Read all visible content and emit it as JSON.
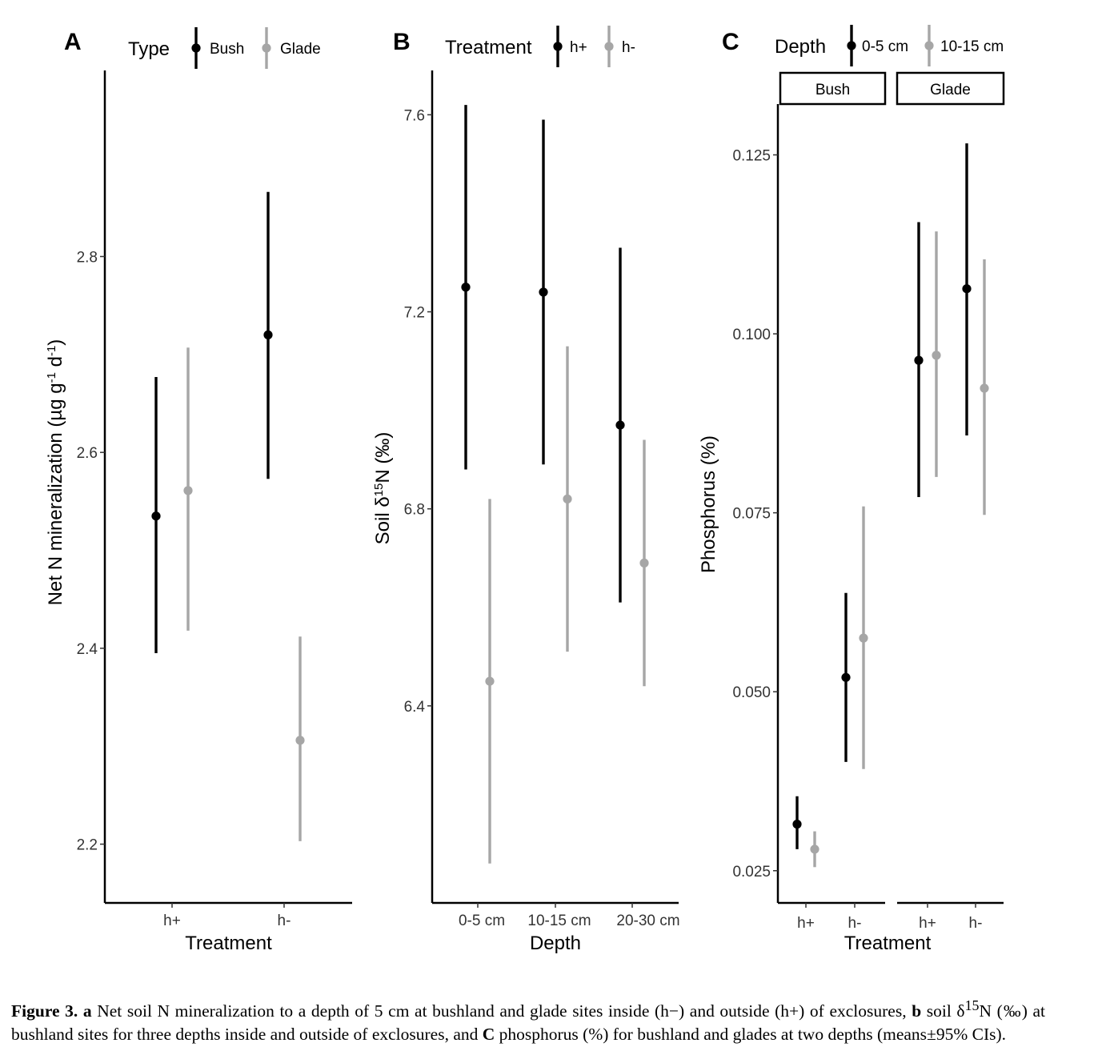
{
  "chart_data": [
    {
      "type": "errorbar",
      "panel_label": "A",
      "xlabel": "Treatment",
      "ylabel": "Net N mineralization (µg g⁻¹ d⁻¹)",
      "categories": [
        "h+",
        "h-"
      ],
      "ylim": [
        2.14,
        2.99
      ],
      "yticks": [
        2.2,
        2.4,
        2.6,
        2.8
      ],
      "ytick_labels": [
        "2.2",
        "2.4",
        "2.6",
        "2.8"
      ],
      "legend": {
        "title": "Type",
        "position": "top"
      },
      "grid": false,
      "series": [
        {
          "name": "Bush",
          "color": "#000000",
          "values": [
            2.535,
            2.72
          ],
          "lower": [
            2.395,
            2.573
          ],
          "upper": [
            2.677,
            2.866
          ]
        },
        {
          "name": "Glade",
          "color": "#a6a6a6",
          "values": [
            2.561,
            2.306
          ],
          "lower": [
            2.418,
            2.203
          ],
          "upper": [
            2.707,
            2.412
          ]
        }
      ]
    },
    {
      "type": "errorbar",
      "panel_label": "B",
      "xlabel": "Depth",
      "ylabel": "Soil δ¹⁵N (‰)",
      "categories": [
        "0-5 cm",
        "10-15 cm",
        "20-30 cm"
      ],
      "ylim": [
        6.0,
        7.69
      ],
      "yticks": [
        6.4,
        6.8,
        7.2,
        7.6
      ],
      "ytick_labels": [
        "6.4",
        "6.8",
        "7.2",
        "7.6"
      ],
      "legend": {
        "title": "Treatment",
        "position": "top"
      },
      "grid": false,
      "series": [
        {
          "name": "h+",
          "color": "#000000",
          "values": [
            7.25,
            7.24,
            6.97
          ],
          "lower": [
            6.88,
            6.89,
            6.61
          ],
          "upper": [
            7.62,
            7.59,
            7.33
          ]
        },
        {
          "name": "h-",
          "color": "#a6a6a6",
          "values": [
            6.45,
            6.82,
            6.69
          ],
          "lower": [
            6.08,
            6.51,
            6.44
          ],
          "upper": [
            6.82,
            7.13,
            6.94
          ]
        }
      ]
    },
    {
      "type": "errorbar",
      "panel_label": "C",
      "xlabel": "Treatment",
      "ylabel": "Phosphorus (%)",
      "facets": [
        "Bush",
        "Glade"
      ],
      "categories": [
        "h+",
        "h-"
      ],
      "ylim": [
        0.0205,
        0.1321
      ],
      "yticks": [
        0.025,
        0.05,
        0.075,
        0.1,
        0.125
      ],
      "ytick_labels": [
        "0.025",
        "0.050",
        "0.075",
        "0.100",
        "0.125"
      ],
      "legend": {
        "title": "Depth",
        "position": "top"
      },
      "grid": false,
      "series": [
        {
          "name": "0-5 cm",
          "color": "#000000",
          "facet_values": {
            "Bush": {
              "values": [
                0.0315,
                0.052
              ],
              "lower": [
                0.028,
                0.0402
              ],
              "upper": [
                0.0354,
                0.0638
              ]
            },
            "Glade": {
              "values": [
                0.0963,
                0.1063
              ],
              "lower": [
                0.0772,
                0.0858
              ],
              "upper": [
                0.1156,
                0.1266
              ]
            }
          }
        },
        {
          "name": "10-15 cm",
          "color": "#a6a6a6",
          "facet_values": {
            "Bush": {
              "values": [
                0.028,
                0.0575
              ],
              "lower": [
                0.0255,
                0.0392
              ],
              "upper": [
                0.0305,
                0.0759
              ]
            },
            "Glade": {
              "values": [
                0.097,
                0.0924
              ],
              "lower": [
                0.08,
                0.0747
              ],
              "upper": [
                0.1143,
                0.1104
              ]
            }
          }
        }
      ]
    }
  ],
  "caption": {
    "label": "Figure 3.",
    "part_a_marker": "a",
    "part_a_text": "Net soil N mineralization to a depth of 5 cm at bushland and glade sites inside (h−) and outside (h+) of exclosures,",
    "part_b_marker": "b",
    "part_b_text_before": "soil δ",
    "part_b_superscript": "15",
    "part_b_text_after": "N (‰) at bushland sites for three depths inside and outside of exclosures, and",
    "part_c_marker": "C",
    "part_c_text": "phosphorus (%) for bushland and glades at two depths (means±95% CIs)."
  }
}
